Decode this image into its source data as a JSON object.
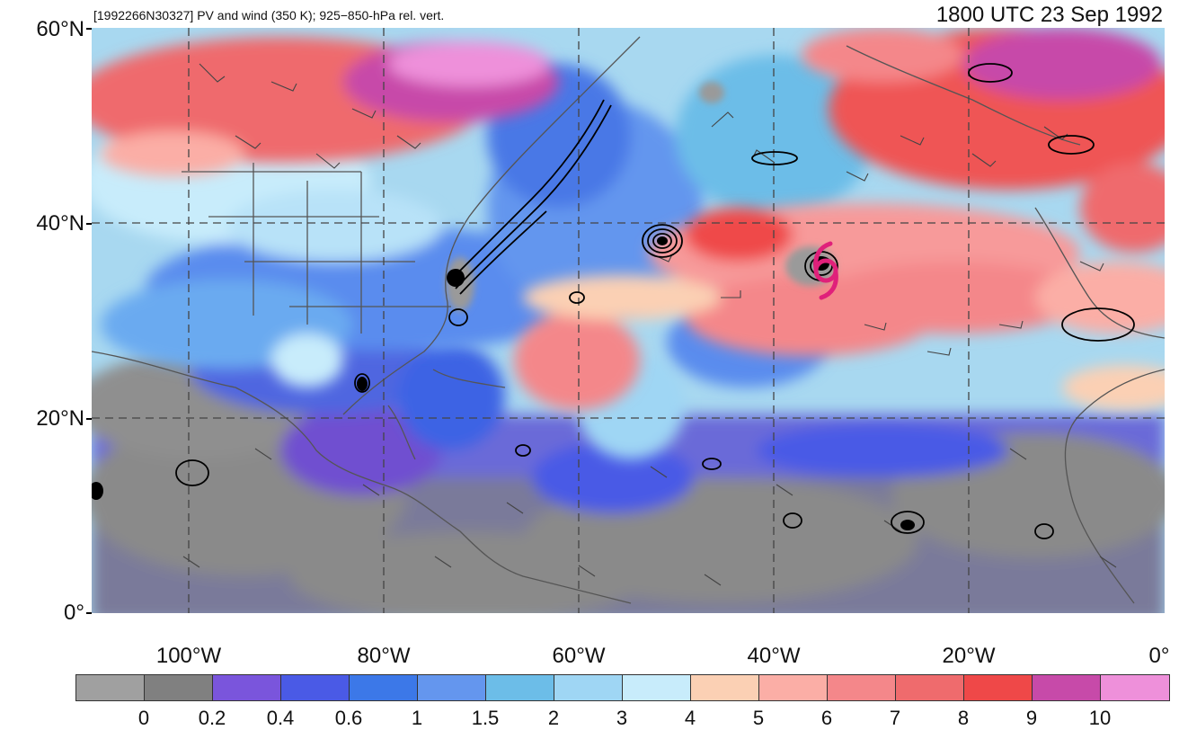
{
  "header": {
    "left_title": "[1992266N30327] PV and wind (350 K); 925−850-hPa rel. vert.",
    "right_title": "1800 UTC 23 Sep 1992"
  },
  "axes": {
    "lat_labels": [
      "60°N",
      "40°N",
      "20°N",
      "0°"
    ],
    "lon_labels": [
      "100°W",
      "80°W",
      "60°W",
      "40°W",
      "20°W",
      "0°"
    ]
  },
  "storm_marker": {
    "icon": "hurricane-symbol-icon",
    "color": "#e0207a"
  },
  "colorbar": {
    "colors": [
      "#a0a0a0",
      "#808080",
      "#7a55dc",
      "#4a5ae6",
      "#3c78e8",
      "#6496ee",
      "#6cbde8",
      "#9fd6f4",
      "#c8ecfb",
      "#fbd0b4",
      "#fbaea6",
      "#f4878a",
      "#ef6b6d",
      "#ef4848",
      "#c74aa9",
      "#ee90da"
    ],
    "tick_labels": [
      "0",
      "0.2",
      "0.4",
      "0.6",
      "1",
      "1.5",
      "2",
      "3",
      "4",
      "5",
      "6",
      "7",
      "8",
      "9",
      "10"
    ]
  }
}
